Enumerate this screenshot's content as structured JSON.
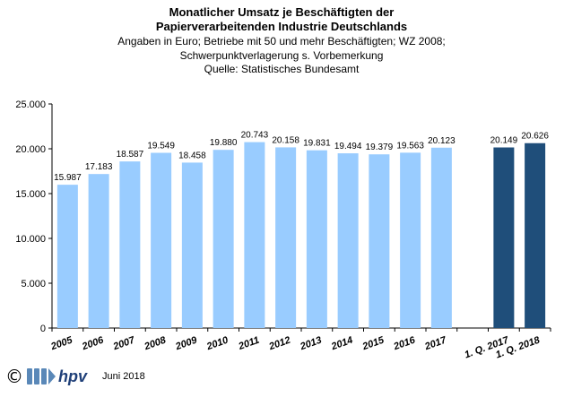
{
  "chart_data": {
    "type": "bar",
    "title_lines": [
      "Monatlicher Umsatz je Beschäftigten der",
      "Papierverarbeitenden Industrie Deutschlands"
    ],
    "subtitle_lines": [
      "Angaben  in Euro; Betriebe mit 50 und mehr Beschäftigten; WZ 2008;",
      "Schwerpunktverlagerung   s. Vorbemerkung",
      "Quelle: Statistisches Bundesamt"
    ],
    "categories": [
      "2005",
      "2006",
      "2007",
      "2008",
      "2009",
      "2010",
      "2011",
      "2012",
      "2013",
      "2014",
      "2015",
      "2016",
      "2017",
      "",
      "1. Q. 2017",
      "1. Q. 2018"
    ],
    "values": [
      15987,
      17183,
      18587,
      19549,
      18458,
      19880,
      20743,
      20158,
      19831,
      19494,
      19379,
      19563,
      20123,
      null,
      20149,
      20626
    ],
    "value_labels": [
      "15.987",
      "17.183",
      "18.587",
      "19.549",
      "18.458",
      "19.880",
      "20.743",
      "20.158",
      "19.831",
      "19.494",
      "19.379",
      "19.563",
      "20.123",
      "",
      "20.149",
      "20.626"
    ],
    "bar_colors": [
      "#99ccff",
      "#99ccff",
      "#99ccff",
      "#99ccff",
      "#99ccff",
      "#99ccff",
      "#99ccff",
      "#99ccff",
      "#99ccff",
      "#99ccff",
      "#99ccff",
      "#99ccff",
      "#99ccff",
      "",
      "#1f4e7a",
      "#1f4e7a"
    ],
    "ylim": [
      0,
      25000
    ],
    "yticks": [
      0,
      5000,
      10000,
      15000,
      20000,
      25000
    ],
    "ytick_labels": [
      "0",
      "5.000",
      "10.000",
      "15.000",
      "20.000",
      "25.000"
    ],
    "grid": false,
    "legend": "none",
    "xlabel": "",
    "ylabel": ""
  },
  "footer": {
    "copyright": "©",
    "logo_text": "hpv",
    "date": "Juni 2018"
  },
  "colors": {
    "annual_bar": "#99ccff",
    "quarter_bar": "#1f4e7a",
    "axis": "#000000"
  }
}
